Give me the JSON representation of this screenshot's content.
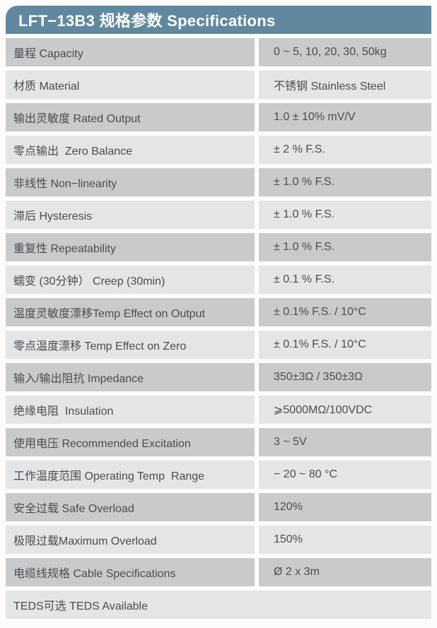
{
  "header": {
    "title": "LFT−13B3 规格参数 Specifications"
  },
  "colors": {
    "header_bg": "#60889f",
    "header_text": "#ffffff",
    "row_dark": "#c9cacb",
    "row_light": "#e4e5e6",
    "text": "#4c4c4c",
    "page_bg": "#fcfcfc"
  },
  "table": {
    "rows": [
      {
        "label": "量程 Capacity",
        "value": "0 ~ 5, 10, 20, 30, 50kg"
      },
      {
        "label": "材质 Material",
        "value": "不锈钢 Stainless Steel"
      },
      {
        "label": "输出灵敏度 Rated Output",
        "value": "1.0 ± 10% mV/V"
      },
      {
        "label": "零点输出  Zero Balance",
        "value": "± 2 % F.S."
      },
      {
        "label": "非线性 Non−linearity",
        "value": "± 1.0 % F.S."
      },
      {
        "label": "滞后 Hysteresis",
        "value": "± 1.0 % F.S."
      },
      {
        "label": "重复性 Repeatability",
        "value": "± 1.0 % F.S."
      },
      {
        "label": "蠕变 (30分钟） Creep (30min)",
        "value": "± 0.1 % F.S."
      },
      {
        "label": "温度灵敏度漂移Temp Effect on Output",
        "value": "± 0.1% F.S. / 10°C"
      },
      {
        "label": "零点温度漂移 Temp Effect on Zero",
        "value": "± 0.1% F.S. / 10°C"
      },
      {
        "label": "输入/输出阻抗 Impedance",
        "value": "350±3Ω / 350±3Ω"
      },
      {
        "label": "绝缘电阻  Insulation",
        "value": "⩾5000MΩ/100VDC"
      },
      {
        "label": "使用电压 Recommended Excitation",
        "value": "3 ~ 5V"
      },
      {
        "label": "工作温度范围 Operating Temp  Range",
        "value": "− 20 ~ 80 °C"
      },
      {
        "label": "安全过载 Safe Overload",
        "value": "120%"
      },
      {
        "label": "极限过载Maximum Overload",
        "value": "150%"
      },
      {
        "label": "电缆线规格 Cable Specifications",
        "value": "Ø 2 x 3m"
      },
      {
        "label": "TEDS可选 TEDS Available",
        "value": "",
        "full_width": true
      }
    ]
  }
}
